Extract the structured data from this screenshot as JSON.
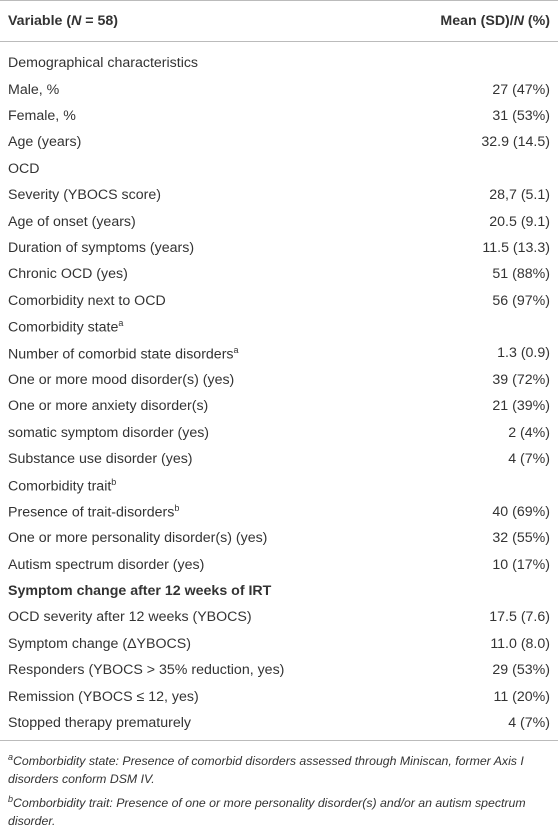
{
  "header": {
    "col1": [
      "Variable (",
      "N",
      " = 58)"
    ],
    "col2": [
      "Mean (SD)/",
      "N",
      " (%)"
    ]
  },
  "table": {
    "rows": [
      {
        "label": "Demographical characteristics"
      },
      {
        "label": "Male, %",
        "value": "27 (47%)"
      },
      {
        "label": "Female, %",
        "value": "31 (53%)"
      },
      {
        "label": "Age (years)",
        "value": "32.9 (14.5)"
      },
      {
        "label": "OCD"
      },
      {
        "label": "Severity (YBOCS score)",
        "value": "28,7 (5.1)"
      },
      {
        "label": "Age of onset (years)",
        "value": "20.5 (9.1)"
      },
      {
        "label": "Duration of symptoms (years)",
        "value": "11.5 (13.3)"
      },
      {
        "label": "Chronic OCD (yes)",
        "value": "51 (88%)"
      },
      {
        "label": "Comorbidity next to OCD",
        "value": "56 (97%)"
      },
      {
        "label": "Comorbidity state",
        "sup": "a"
      },
      {
        "label": "Number of comorbid state disorders",
        "sup": "a",
        "value": "1.3 (0.9)"
      },
      {
        "label": "One or more mood disorder(s) (yes)",
        "value": "39 (72%)"
      },
      {
        "label": "One or more anxiety disorder(s)",
        "value": "21 (39%)"
      },
      {
        "label": "somatic symptom disorder (yes)",
        "value": "2 (4%)"
      },
      {
        "label": "Substance use disorder (yes)",
        "value": "4 (7%)"
      },
      {
        "label": "Comorbidity trait",
        "sup": "b"
      },
      {
        "label": "Presence of trait-disorders",
        "sup": "b",
        "value": "40 (69%)"
      },
      {
        "label": "One or more personality disorder(s) (yes)",
        "value": "32 (55%)"
      },
      {
        "label": "Autism spectrum disorder (yes)",
        "value": "10 (17%)"
      },
      {
        "label": "Symptom change after 12 weeks of IRT",
        "bold": true
      },
      {
        "label": "OCD severity after 12 weeks (YBOCS)",
        "value": "17.5 (7.6)"
      },
      {
        "label": "Symptom change (ΔYBOCS)",
        "value": "11.0 (8.0)"
      },
      {
        "label": "Responders (YBOCS > 35% reduction, yes)",
        "value": "29 (53%)"
      },
      {
        "label": "Remission (YBOCS ≤ 12, yes)",
        "value": "11 (20%)"
      },
      {
        "label": "Stopped therapy prematurely",
        "value": "4 (7%)"
      }
    ]
  },
  "footnotes": [
    {
      "mark": "a",
      "text": "Comborbidity state: Presence of comorbid disorders assessed through Miniscan, former Axis I disorders conform DSM IV."
    },
    {
      "mark": "b",
      "text": "Comborbidity trait: Presence of one or more personality disorder(s) and/or an autism spectrum disorder."
    }
  ]
}
